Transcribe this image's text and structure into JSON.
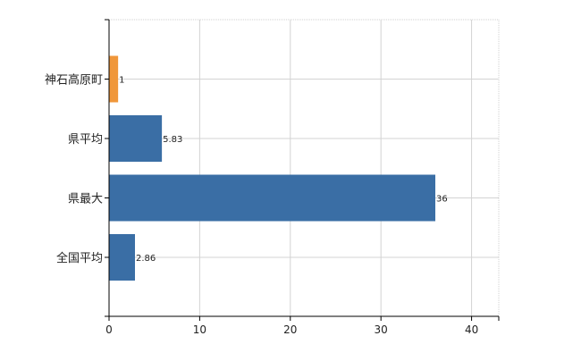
{
  "chart_data": {
    "type": "bar",
    "orientation": "horizontal",
    "categories": [
      "神石高原町",
      "県平均",
      "県最大",
      "全国平均"
    ],
    "values": [
      1,
      5.83,
      36,
      2.86
    ],
    "value_labels": [
      "1",
      "5.83",
      "36",
      "2.86"
    ],
    "bar_colors": [
      "#f0973a",
      "#3a6ea5",
      "#3a6ea5",
      "#3a6ea5"
    ],
    "xlim": [
      0,
      43
    ],
    "x_ticks": [
      0,
      10,
      20,
      30,
      40
    ],
    "x_tick_labels": [
      "0",
      "10",
      "20",
      "30",
      "40"
    ],
    "grid": true,
    "title": "",
    "xlabel": "",
    "ylabel": ""
  }
}
